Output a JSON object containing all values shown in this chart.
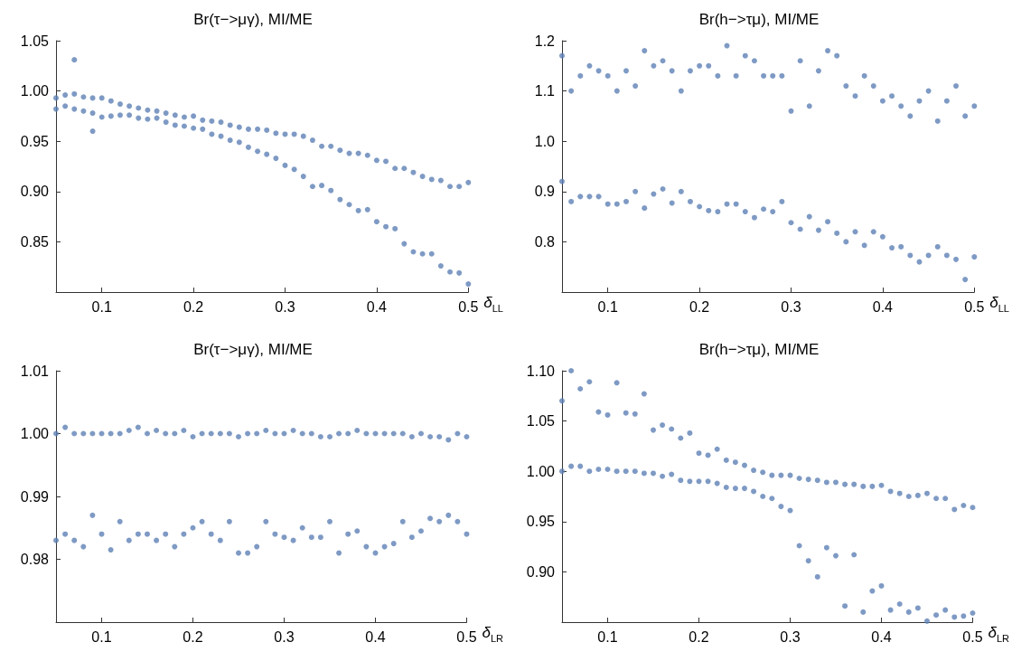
{
  "chart_data": [
    {
      "type": "scatter",
      "title": "Br(τ−>μγ), MI/ME",
      "xlabel": "δ$_{LL}$",
      "marker": "circle",
      "xlim": [
        0.05,
        0.5
      ],
      "xticks": [
        0.1,
        0.2,
        0.3,
        0.4,
        0.5
      ],
      "ylim": [
        0.8,
        1.05
      ],
      "yticks": [
        0.85,
        {
          "value": 0.9,
          "label": "0.90"
        },
        0.95,
        {
          "value": 1.0,
          "label": "1.00"
        },
        1.05
      ],
      "series": [
        {
          "color": "#5e81b5",
          "x": [
            0.05,
            0.05,
            0.06,
            0.06,
            0.07,
            0.07,
            0.07,
            0.08,
            0.08,
            0.09,
            0.09,
            0.09,
            0.1,
            0.1,
            0.11,
            0.11,
            0.12,
            0.12,
            0.13,
            0.13,
            0.14,
            0.14,
            0.15,
            0.15,
            0.16,
            0.16,
            0.17,
            0.17,
            0.18,
            0.18,
            0.19,
            0.19,
            0.2,
            0.2,
            0.21,
            0.21,
            0.22,
            0.22,
            0.23,
            0.23,
            0.24,
            0.24,
            0.25,
            0.25,
            0.26,
            0.26,
            0.27,
            0.27,
            0.28,
            0.28,
            0.29,
            0.29,
            0.3,
            0.3,
            0.31,
            0.31,
            0.32,
            0.32,
            0.33,
            0.33,
            0.34,
            0.34,
            0.35,
            0.35,
            0.36,
            0.36,
            0.37,
            0.37,
            0.38,
            0.38,
            0.39,
            0.39,
            0.4,
            0.4,
            0.41,
            0.41,
            0.42,
            0.42,
            0.43,
            0.43,
            0.44,
            0.44,
            0.45,
            0.45,
            0.46,
            0.46,
            0.47,
            0.47,
            0.48,
            0.48,
            0.49,
            0.49,
            0.5,
            0.5
          ],
          "values": [
            0.993,
            0.982,
            0.996,
            0.985,
            0.997,
            0.982,
            1.031,
            0.994,
            0.98,
            0.993,
            0.978,
            0.96,
            0.993,
            0.974,
            0.99,
            0.975,
            0.987,
            0.976,
            0.985,
            0.976,
            0.983,
            0.973,
            0.981,
            0.972,
            0.98,
            0.973,
            0.978,
            0.969,
            0.976,
            0.966,
            0.974,
            0.965,
            0.975,
            0.963,
            0.971,
            0.962,
            0.97,
            0.957,
            0.969,
            0.955,
            0.966,
            0.951,
            0.964,
            0.949,
            0.962,
            0.944,
            0.962,
            0.94,
            0.961,
            0.937,
            0.958,
            0.933,
            0.957,
            0.926,
            0.957,
            0.922,
            0.955,
            0.915,
            0.951,
            0.905,
            0.945,
            0.906,
            0.945,
            0.901,
            0.941,
            0.892,
            0.938,
            0.887,
            0.938,
            0.881,
            0.936,
            0.882,
            0.931,
            0.87,
            0.93,
            0.865,
            0.923,
            0.863,
            0.923,
            0.848,
            0.919,
            0.84,
            0.915,
            0.838,
            0.912,
            0.838,
            0.911,
            0.826,
            0.905,
            0.82,
            0.905,
            0.819,
            0.909,
            0.808
          ]
        }
      ]
    },
    {
      "type": "scatter",
      "title": "Br(h−>τμ), MI/ME",
      "xlabel": "δ$_{LL}$",
      "marker": "circle",
      "xlim": [
        0.05,
        0.5
      ],
      "xticks": [
        0.1,
        0.2,
        0.3,
        0.4,
        0.5
      ],
      "ylim": [
        0.7,
        1.2
      ],
      "yticks": [
        0.8,
        0.9,
        {
          "value": 1.0,
          "label": "1.0"
        },
        1.1,
        1.2
      ],
      "series": [
        {
          "color": "#5e81b5",
          "x": [
            0.05,
            0.05,
            0.06,
            0.06,
            0.07,
            0.07,
            0.08,
            0.08,
            0.09,
            0.09,
            0.1,
            0.1,
            0.11,
            0.11,
            0.12,
            0.12,
            0.13,
            0.13,
            0.14,
            0.14,
            0.15,
            0.15,
            0.16,
            0.16,
            0.17,
            0.17,
            0.18,
            0.18,
            0.19,
            0.19,
            0.2,
            0.2,
            0.21,
            0.21,
            0.22,
            0.22,
            0.23,
            0.23,
            0.24,
            0.24,
            0.25,
            0.25,
            0.26,
            0.26,
            0.27,
            0.27,
            0.28,
            0.28,
            0.29,
            0.29,
            0.3,
            0.3,
            0.31,
            0.31,
            0.32,
            0.32,
            0.33,
            0.33,
            0.34,
            0.34,
            0.35,
            0.35,
            0.36,
            0.36,
            0.37,
            0.37,
            0.38,
            0.38,
            0.39,
            0.39,
            0.4,
            0.4,
            0.41,
            0.41,
            0.42,
            0.42,
            0.43,
            0.43,
            0.44,
            0.44,
            0.45,
            0.45,
            0.46,
            0.46,
            0.47,
            0.47,
            0.48,
            0.48,
            0.49,
            0.49,
            0.5,
            0.5
          ],
          "values": [
            1.17,
            0.92,
            1.1,
            0.88,
            1.13,
            0.89,
            1.15,
            0.89,
            1.14,
            0.89,
            1.13,
            0.875,
            1.1,
            0.875,
            1.14,
            0.88,
            1.11,
            0.9,
            1.18,
            0.867,
            1.15,
            0.895,
            1.16,
            0.905,
            1.14,
            0.877,
            1.1,
            0.9,
            1.14,
            0.88,
            1.15,
            0.87,
            1.15,
            0.862,
            1.13,
            0.86,
            1.19,
            0.875,
            1.13,
            0.875,
            1.17,
            0.86,
            1.16,
            0.848,
            1.13,
            0.865,
            1.13,
            0.86,
            1.13,
            0.88,
            1.06,
            0.838,
            1.16,
            0.825,
            1.07,
            0.85,
            1.14,
            0.823,
            1.18,
            0.84,
            1.17,
            0.817,
            1.11,
            0.8,
            1.09,
            0.82,
            1.13,
            0.793,
            1.11,
            0.82,
            1.08,
            0.81,
            1.09,
            0.788,
            1.07,
            0.79,
            1.05,
            0.773,
            1.08,
            0.76,
            1.1,
            0.773,
            1.04,
            0.79,
            1.08,
            0.773,
            1.11,
            0.765,
            1.05,
            0.725,
            1.07,
            0.77
          ]
        }
      ]
    },
    {
      "type": "scatter",
      "title": "Br(τ−>μγ), MI/ME",
      "xlabel": "δ$_{LR}$",
      "marker": "circle",
      "xlim": [
        0.05,
        0.5
      ],
      "xticks": [
        0.1,
        0.2,
        0.3,
        0.4,
        0.5
      ],
      "ylim": [
        0.97,
        1.01
      ],
      "yticks": [
        0.98,
        0.99,
        {
          "value": 1.0,
          "label": "1.00"
        },
        1.01
      ],
      "series": [
        {
          "color": "#5e81b5",
          "x": [
            0.05,
            0.05,
            0.06,
            0.06,
            0.07,
            0.07,
            0.08,
            0.08,
            0.09,
            0.09,
            0.1,
            0.1,
            0.11,
            0.11,
            0.12,
            0.12,
            0.13,
            0.13,
            0.14,
            0.14,
            0.15,
            0.15,
            0.16,
            0.16,
            0.17,
            0.17,
            0.18,
            0.18,
            0.19,
            0.19,
            0.2,
            0.2,
            0.21,
            0.21,
            0.22,
            0.22,
            0.23,
            0.23,
            0.24,
            0.24,
            0.25,
            0.25,
            0.26,
            0.26,
            0.27,
            0.27,
            0.28,
            0.28,
            0.29,
            0.29,
            0.3,
            0.3,
            0.31,
            0.31,
            0.32,
            0.32,
            0.33,
            0.33,
            0.34,
            0.34,
            0.35,
            0.35,
            0.36,
            0.36,
            0.37,
            0.37,
            0.38,
            0.38,
            0.39,
            0.39,
            0.4,
            0.4,
            0.41,
            0.41,
            0.42,
            0.42,
            0.43,
            0.43,
            0.44,
            0.44,
            0.45,
            0.45,
            0.46,
            0.46,
            0.47,
            0.47,
            0.48,
            0.48,
            0.49,
            0.49,
            0.5,
            0.5
          ],
          "values": [
            1.0,
            0.983,
            1.001,
            0.984,
            1.0,
            0.983,
            1.0,
            0.982,
            1.0,
            0.987,
            1.0,
            0.984,
            1.0,
            0.9815,
            1.0,
            0.986,
            1.0005,
            0.983,
            1.001,
            0.984,
            1.0,
            0.984,
            1.0005,
            0.983,
            1.0,
            0.984,
            1.0,
            0.982,
            1.0005,
            0.984,
            0.9995,
            0.985,
            1.0,
            0.986,
            1.0,
            0.984,
            1.0,
            0.983,
            1.0,
            0.986,
            0.9995,
            0.981,
            1.0,
            0.981,
            1.0,
            0.982,
            1.0005,
            0.986,
            1.0,
            0.984,
            1.0,
            0.9835,
            1.0005,
            0.983,
            1.0,
            0.985,
            1.0,
            0.9835,
            0.9995,
            0.9835,
            0.9995,
            0.986,
            1.0,
            0.981,
            1.0,
            0.984,
            1.0005,
            0.9845,
            1.0,
            0.982,
            1.0,
            0.981,
            1.0,
            0.982,
            1.0,
            0.9825,
            1.0,
            0.986,
            0.9995,
            0.9835,
            1.0,
            0.9845,
            0.9995,
            0.9865,
            0.9995,
            0.986,
            0.999,
            0.987,
            1.0,
            0.986,
            0.9995,
            0.984
          ]
        }
      ]
    },
    {
      "type": "scatter",
      "title": "Br(h−>τμ), MI/ME",
      "xlabel": "δ$_{LR}$",
      "marker": "circle",
      "xlim": [
        0.05,
        0.5
      ],
      "xticks": [
        0.1,
        0.2,
        0.3,
        0.4,
        0.5
      ],
      "ylim": [
        0.85,
        1.1
      ],
      "yticks": [
        {
          "value": 0.9,
          "label": "0.90"
        },
        0.95,
        {
          "value": 1.0,
          "label": "1.00"
        },
        1.05,
        {
          "value": 1.1,
          "label": "1.10"
        }
      ],
      "series": [
        {
          "color": "#5e81b5",
          "x": [
            0.05,
            0.05,
            0.06,
            0.06,
            0.07,
            0.07,
            0.08,
            0.08,
            0.09,
            0.09,
            0.1,
            0.1,
            0.11,
            0.11,
            0.12,
            0.12,
            0.13,
            0.13,
            0.14,
            0.14,
            0.15,
            0.15,
            0.16,
            0.16,
            0.17,
            0.17,
            0.18,
            0.18,
            0.19,
            0.19,
            0.2,
            0.2,
            0.21,
            0.21,
            0.22,
            0.22,
            0.23,
            0.23,
            0.24,
            0.24,
            0.25,
            0.25,
            0.26,
            0.26,
            0.27,
            0.27,
            0.28,
            0.28,
            0.29,
            0.29,
            0.3,
            0.3,
            0.31,
            0.31,
            0.32,
            0.32,
            0.33,
            0.33,
            0.34,
            0.34,
            0.35,
            0.35,
            0.36,
            0.36,
            0.37,
            0.37,
            0.38,
            0.38,
            0.39,
            0.39,
            0.4,
            0.4,
            0.41,
            0.41,
            0.42,
            0.42,
            0.43,
            0.43,
            0.44,
            0.44,
            0.45,
            0.45,
            0.46,
            0.46,
            0.47,
            0.47,
            0.48,
            0.48,
            0.49,
            0.49,
            0.5,
            0.5
          ],
          "values": [
            1.07,
            1.0,
            1.1,
            1.005,
            1.082,
            1.005,
            1.089,
            1.0,
            1.059,
            1.002,
            1.056,
            1.002,
            1.088,
            1.0,
            1.058,
            1.0,
            1.057,
            1.0,
            1.077,
            0.998,
            1.041,
            0.998,
            1.046,
            0.995,
            1.042,
            0.997,
            1.033,
            0.991,
            1.038,
            0.99,
            1.018,
            0.99,
            1.016,
            0.99,
            1.022,
            0.988,
            1.011,
            0.984,
            1.009,
            0.983,
            1.006,
            0.983,
            1.001,
            0.98,
            0.999,
            0.975,
            0.996,
            0.973,
            0.996,
            0.965,
            0.996,
            0.961,
            0.993,
            0.926,
            0.992,
            0.911,
            0.991,
            0.895,
            0.989,
            0.924,
            0.989,
            0.916,
            0.987,
            0.866,
            0.987,
            0.917,
            0.985,
            0.86,
            0.985,
            0.881,
            0.986,
            0.886,
            0.98,
            0.862,
            0.978,
            0.868,
            0.975,
            0.86,
            0.976,
            0.864,
            0.978,
            0.851,
            0.973,
            0.857,
            0.973,
            0.862,
            0.962,
            0.855,
            0.966,
            0.856,
            0.964,
            0.859
          ]
        }
      ]
    }
  ]
}
